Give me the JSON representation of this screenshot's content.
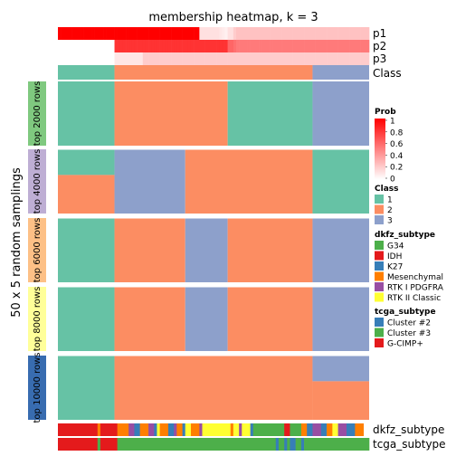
{
  "chart_data": {
    "type": "heatmap",
    "title": "membership heatmap, k = 3",
    "ylabel": "50 x 5 random samplings",
    "colors": {
      "class": {
        "1": "#66C2A5",
        "2": "#FC8D62",
        "3": "#8DA0CB"
      },
      "prob_low": "#FFFFFF",
      "prob_high": "#FF0000",
      "separator": "#FFFFFF"
    },
    "sample_count": 110,
    "prob_rows": [
      {
        "label": "p1",
        "values": [
          1,
          1,
          1,
          1,
          1,
          1,
          1,
          1,
          1,
          1,
          1,
          1,
          1,
          1,
          1,
          1,
          1,
          1,
          1,
          1,
          1,
          1,
          1,
          1,
          1,
          1,
          1,
          1,
          1,
          1,
          1,
          1,
          1,
          1,
          1,
          1,
          1,
          1,
          1,
          1,
          1,
          1,
          1,
          1,
          1,
          1,
          1,
          1,
          1,
          1,
          0.12,
          0.12,
          0.12,
          0.12,
          0.12,
          0.12,
          0.12,
          0.1,
          0.08,
          0.06,
          0.12,
          0.12,
          0.2,
          0.24,
          0.24,
          0.24,
          0.24,
          0.24,
          0.24,
          0.24,
          0.24,
          0.24,
          0.24,
          0.24,
          0.24,
          0.24,
          0.24,
          0.24,
          0.24,
          0.24,
          0.24,
          0.24,
          0.24,
          0.24,
          0.24,
          0.24,
          0.24,
          0.24,
          0.24,
          0.24,
          0.24,
          0.24,
          0.24,
          0.24,
          0.24,
          0.24,
          0.24,
          0.24,
          0.24,
          0.24,
          0.24,
          0.24,
          0.24,
          0.24,
          0.24,
          0.24,
          0.24,
          0.24,
          0.24,
          0.24
        ]
      },
      {
        "label": "p2",
        "values": [
          0,
          0,
          0,
          0,
          0,
          0,
          0,
          0,
          0,
          0,
          0,
          0,
          0,
          0,
          0,
          0,
          0,
          0,
          0,
          0,
          0.8,
          0.8,
          0.8,
          0.8,
          0.8,
          0.8,
          0.8,
          0.8,
          0.8,
          0.8,
          0.8,
          0.8,
          0.8,
          0.8,
          0.8,
          0.8,
          0.8,
          0.8,
          0.8,
          0.8,
          0.8,
          0.8,
          0.8,
          0.8,
          0.8,
          0.8,
          0.8,
          0.8,
          0.8,
          0.8,
          0.8,
          0.8,
          0.8,
          0.8,
          0.8,
          0.8,
          0.8,
          0.8,
          0.8,
          0.8,
          0.6,
          0.6,
          0.56,
          0.52,
          0.52,
          0.52,
          0.52,
          0.52,
          0.52,
          0.52,
          0.52,
          0.52,
          0.52,
          0.52,
          0.52,
          0.52,
          0.52,
          0.52,
          0.52,
          0.52,
          0.52,
          0.52,
          0.52,
          0.52,
          0.52,
          0.52,
          0.52,
          0.52,
          0.52,
          0.52,
          0.52,
          0.52,
          0.52,
          0.52,
          0.52,
          0.52,
          0.52,
          0.52,
          0.52,
          0.52,
          0.52,
          0.52,
          0.52,
          0.52,
          0.52,
          0.52,
          0.52,
          0.52,
          0.52,
          0.52
        ]
      },
      {
        "label": "p3",
        "values": [
          0,
          0,
          0,
          0,
          0,
          0,
          0,
          0,
          0,
          0,
          0,
          0,
          0,
          0,
          0,
          0,
          0,
          0,
          0,
          0,
          0.1,
          0.1,
          0.1,
          0.1,
          0.1,
          0.1,
          0.1,
          0.1,
          0.1,
          0.1,
          0.2,
          0.2,
          0.2,
          0.2,
          0.2,
          0.2,
          0.2,
          0.2,
          0.2,
          0.2,
          0.2,
          0.2,
          0.2,
          0.2,
          0.2,
          0.2,
          0.2,
          0.2,
          0.2,
          0.2,
          0.2,
          0.2,
          0.2,
          0.2,
          0.2,
          0.2,
          0.2,
          0.2,
          0.2,
          0.2,
          0.2,
          0.2,
          0.2,
          0.2,
          0.2,
          0.2,
          0.2,
          0.2,
          0.2,
          0.2,
          0.2,
          0.2,
          0.2,
          0.2,
          0.2,
          0.2,
          0.2,
          0.2,
          0.2,
          0.2,
          0.2,
          0.2,
          0.2,
          0.2,
          0.2,
          0.2,
          0.2,
          0.2,
          0.2,
          0.2,
          0.2,
          0.2,
          0.2,
          0.2,
          0.2,
          0.2,
          0.2,
          0.2,
          0.2,
          0.2,
          0.2,
          0.2,
          0.2,
          0.2,
          0.2,
          0.2,
          0.2,
          0.2,
          0.2,
          0.2
        ]
      }
    ],
    "class_row": {
      "label": "Class",
      "segments": [
        {
          "class": "1",
          "count": 20
        },
        {
          "class": "2",
          "count": 70
        },
        {
          "class": "3",
          "count": 20
        }
      ]
    },
    "row_groups": [
      {
        "label": "top 2000 rows",
        "color": "#7FC97F",
        "rows": 50,
        "blocks": [
          {
            "row_from": 0,
            "row_to": 50,
            "col_from": 0,
            "col_to": 20,
            "class": "1"
          },
          {
            "row_from": 0,
            "row_to": 50,
            "col_from": 20,
            "col_to": 60,
            "class": "2"
          },
          {
            "row_from": 0,
            "row_to": 50,
            "col_from": 60,
            "col_to": 90,
            "class": "1"
          },
          {
            "row_from": 0,
            "row_to": 50,
            "col_from": 90,
            "col_to": 110,
            "class": "3"
          }
        ]
      },
      {
        "label": "top 4000 rows",
        "color": "#BEAED4",
        "rows": 50,
        "blocks": [
          {
            "row_from": 0,
            "row_to": 20,
            "col_from": 0,
            "col_to": 20,
            "class": "1"
          },
          {
            "row_from": 20,
            "row_to": 50,
            "col_from": 0,
            "col_to": 20,
            "class": "2"
          },
          {
            "row_from": 0,
            "row_to": 50,
            "col_from": 20,
            "col_to": 45,
            "class": "3"
          },
          {
            "row_from": 0,
            "row_to": 50,
            "col_from": 45,
            "col_to": 90,
            "class": "2"
          },
          {
            "row_from": 0,
            "row_to": 50,
            "col_from": 90,
            "col_to": 110,
            "class": "1"
          }
        ]
      },
      {
        "label": "top 6000 rows",
        "color": "#FDC086",
        "rows": 50,
        "blocks": [
          {
            "row_from": 0,
            "row_to": 50,
            "col_from": 0,
            "col_to": 20,
            "class": "1"
          },
          {
            "row_from": 0,
            "row_to": 50,
            "col_from": 20,
            "col_to": 45,
            "class": "2"
          },
          {
            "row_from": 0,
            "row_to": 50,
            "col_from": 45,
            "col_to": 60,
            "class": "3"
          },
          {
            "row_from": 0,
            "row_to": 50,
            "col_from": 60,
            "col_to": 90,
            "class": "2"
          },
          {
            "row_from": 0,
            "row_to": 50,
            "col_from": 90,
            "col_to": 110,
            "class": "3"
          }
        ]
      },
      {
        "label": "top 8000 rows",
        "color": "#FFFF99",
        "rows": 50,
        "blocks": [
          {
            "row_from": 0,
            "row_to": 50,
            "col_from": 0,
            "col_to": 20,
            "class": "1"
          },
          {
            "row_from": 0,
            "row_to": 50,
            "col_from": 20,
            "col_to": 45,
            "class": "2"
          },
          {
            "row_from": 0,
            "row_to": 50,
            "col_from": 45,
            "col_to": 60,
            "class": "3"
          },
          {
            "row_from": 0,
            "row_to": 50,
            "col_from": 60,
            "col_to": 90,
            "class": "2"
          },
          {
            "row_from": 0,
            "row_to": 50,
            "col_from": 90,
            "col_to": 110,
            "class": "3"
          }
        ]
      },
      {
        "label": "top 10000 rows",
        "color": "#386CB0",
        "rows": 50,
        "blocks": [
          {
            "row_from": 0,
            "row_to": 50,
            "col_from": 0,
            "col_to": 20,
            "class": "1"
          },
          {
            "row_from": 0,
            "row_to": 50,
            "col_from": 20,
            "col_to": 90,
            "class": "2"
          },
          {
            "row_from": 0,
            "row_to": 20,
            "col_from": 90,
            "col_to": 110,
            "class": "3"
          },
          {
            "row_from": 20,
            "row_to": 50,
            "col_from": 90,
            "col_to": 110,
            "class": "2"
          }
        ]
      }
    ],
    "annotations": [
      {
        "label": "dkfz_subtype",
        "segments": [
          {
            "value": "IDH",
            "count": 14
          },
          {
            "value": "Mesenchymal",
            "count": 1
          },
          {
            "value": "IDH",
            "count": 6
          },
          {
            "value": "Mesenchymal",
            "count": 4
          },
          {
            "value": "RTK I PDGFRA",
            "count": 2
          },
          {
            "value": "K27",
            "count": 2
          },
          {
            "value": "Mesenchymal",
            "count": 3
          },
          {
            "value": "RTK I PDGFRA",
            "count": 2
          },
          {
            "value": "K27",
            "count": 1
          },
          {
            "value": "RTK II Classic",
            "count": 1
          },
          {
            "value": "Mesenchymal",
            "count": 3
          },
          {
            "value": "K27",
            "count": 2
          },
          {
            "value": "RTK I PDGFRA",
            "count": 1
          },
          {
            "value": "Mesenchymal",
            "count": 2
          },
          {
            "value": "K27",
            "count": 1
          },
          {
            "value": "RTK II Classic",
            "count": 2
          },
          {
            "value": "Mesenchymal",
            "count": 3
          },
          {
            "value": "RTK I PDGFRA",
            "count": 1
          },
          {
            "value": "RTK II Classic",
            "count": 10
          },
          {
            "value": "Mesenchymal",
            "count": 1
          },
          {
            "value": "RTK II Classic",
            "count": 2
          },
          {
            "value": "RTK I PDGFRA",
            "count": 1
          },
          {
            "value": "RTK II Classic",
            "count": 3
          },
          {
            "value": "K27",
            "count": 1
          },
          {
            "value": "G34",
            "count": 11
          },
          {
            "value": "IDH",
            "count": 2
          },
          {
            "value": "G34",
            "count": 4
          },
          {
            "value": "Mesenchymal",
            "count": 2
          },
          {
            "value": "K27",
            "count": 2
          },
          {
            "value": "RTK I PDGFRA",
            "count": 3
          },
          {
            "value": "K27",
            "count": 2
          },
          {
            "value": "Mesenchymal",
            "count": 2
          },
          {
            "value": "RTK II Classic",
            "count": 2
          },
          {
            "value": "RTK I PDGFRA",
            "count": 3
          },
          {
            "value": "K27",
            "count": 3
          },
          {
            "value": "Mesenchymal",
            "count": 3
          }
        ]
      },
      {
        "label": "tcga_subtype",
        "segments": [
          {
            "value": "G-CIMP+",
            "count": 14
          },
          {
            "value": "Cluster #3",
            "count": 1
          },
          {
            "value": "G-CIMP+",
            "count": 6
          },
          {
            "value": "Cluster #3",
            "count": 56
          },
          {
            "value": "Cluster #2",
            "count": 1
          },
          {
            "value": "Cluster #3",
            "count": 2
          },
          {
            "value": "Cluster #2",
            "count": 1
          },
          {
            "value": "Cluster #3",
            "count": 1
          },
          {
            "value": "Cluster #2",
            "count": 2
          },
          {
            "value": "Cluster #3",
            "count": 2
          },
          {
            "value": "Cluster #2",
            "count": 1
          },
          {
            "value": "Cluster #3",
            "count": 23
          }
        ]
      }
    ],
    "legends": [
      {
        "title": "Prob",
        "type": "gradient",
        "ticks": [
          "1",
          "0.8",
          "0.6",
          "0.4",
          "0.2",
          "0"
        ]
      },
      {
        "title": "Class",
        "type": "discrete",
        "items": [
          {
            "label": "1",
            "color": "#66C2A5"
          },
          {
            "label": "2",
            "color": "#FC8D62"
          },
          {
            "label": "3",
            "color": "#8DA0CB"
          }
        ]
      },
      {
        "title": "dkfz_subtype",
        "type": "discrete",
        "items": [
          {
            "label": "G34",
            "color": "#4DAF4A"
          },
          {
            "label": "IDH",
            "color": "#E41A1C"
          },
          {
            "label": "K27",
            "color": "#377EB8"
          },
          {
            "label": "Mesenchymal",
            "color": "#FF7F00"
          },
          {
            "label": "RTK I PDGFRA",
            "color": "#984EA3"
          },
          {
            "label": "RTK II Classic",
            "color": "#FFFF33"
          }
        ]
      },
      {
        "title": "tcga_subtype",
        "type": "discrete",
        "items": [
          {
            "label": "Cluster #2",
            "color": "#377EB8"
          },
          {
            "label": "Cluster #3",
            "color": "#4DAF4A"
          },
          {
            "label": "G-CIMP+",
            "color": "#E41A1C"
          }
        ]
      }
    ]
  }
}
